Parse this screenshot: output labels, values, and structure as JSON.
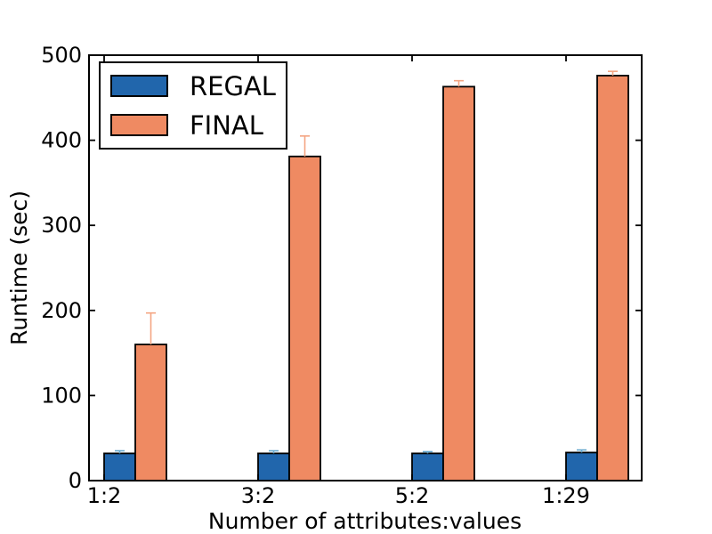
{
  "chart_data": {
    "type": "bar",
    "title": "",
    "xlabel": "Number of attributes:values",
    "ylabel": "Runtime (sec)",
    "categories": [
      "1:2",
      "3:2",
      "5:2",
      "1:29"
    ],
    "series": [
      {
        "name": "REGAL",
        "color": "#2166ac",
        "error_color": "#67a9cf",
        "values": [
          32,
          32,
          32,
          33
        ],
        "errors_up": [
          3,
          3,
          2,
          3
        ]
      },
      {
        "name": "FINAL",
        "color": "#ef8a62",
        "error_color": "#f4a582",
        "values": [
          160,
          381,
          463,
          476
        ],
        "errors_up": [
          37,
          24,
          7,
          5
        ]
      }
    ],
    "ylim": [
      0,
      500
    ],
    "yticks": [
      0,
      100,
      200,
      300,
      400,
      500
    ],
    "grid": false,
    "legend_position": "upper-left",
    "bar_edge_color": "#000000",
    "background_color": "#ffffff"
  }
}
